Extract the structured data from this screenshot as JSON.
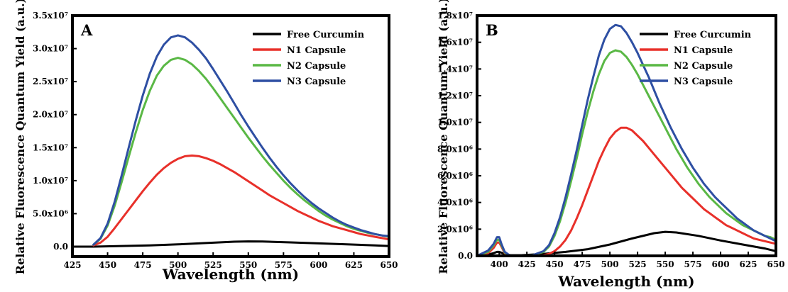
{
  "chart_data": [
    {
      "type": "line",
      "panel_label": "A",
      "xlabel": "Wavelength (nm)",
      "ylabel": "Relative Fluorescence Quantum Yield (a.u.)",
      "xlim": [
        425,
        650
      ],
      "ylim": [
        -1500000,
        35000000
      ],
      "xticks": [
        425,
        450,
        475,
        500,
        525,
        550,
        575,
        600,
        625,
        650
      ],
      "xtick_labels": [
        "425",
        "450",
        "475",
        "500",
        "525",
        "550",
        "575",
        "600",
        "625",
        "650"
      ],
      "yticks": [
        0,
        5000000,
        10000000,
        15000000,
        20000000,
        25000000,
        30000000,
        35000000
      ],
      "ytick_labels": [
        "0.0",
        "5.0x10⁶",
        "1.0x10⁷",
        "1.5x10⁷",
        "2.0x10⁷",
        "2.5x10⁷",
        "3.0x10⁷",
        "3.5x10⁷"
      ],
      "legend_position": "top-right",
      "grid": false,
      "series": [
        {
          "name": "Free Curcumin",
          "color": "#000000",
          "x": [
            425,
            440,
            460,
            480,
            500,
            520,
            540,
            550,
            560,
            580,
            600,
            620,
            640,
            650
          ],
          "y": [
            0,
            0,
            100000,
            200000,
            350000,
            550000,
            750000,
            800000,
            780000,
            650000,
            500000,
            350000,
            200000,
            100000
          ]
        },
        {
          "name": "N1 Capsule",
          "color": "#e8302a",
          "x": [
            440,
            445,
            450,
            455,
            460,
            465,
            470,
            475,
            480,
            485,
            490,
            495,
            500,
            505,
            510,
            515,
            520,
            525,
            530,
            535,
            540,
            545,
            550,
            555,
            560,
            565,
            570,
            575,
            580,
            585,
            590,
            595,
            600,
            605,
            610,
            615,
            620,
            625,
            630,
            635,
            640,
            645,
            650
          ],
          "y": [
            200000,
            600000,
            1500000,
            2800000,
            4200000,
            5600000,
            7000000,
            8400000,
            9700000,
            10900000,
            11900000,
            12700000,
            13300000,
            13700000,
            13800000,
            13700000,
            13400000,
            13000000,
            12500000,
            11900000,
            11300000,
            10600000,
            9900000,
            9200000,
            8500000,
            7800000,
            7200000,
            6600000,
            6000000,
            5400000,
            4900000,
            4400000,
            3900000,
            3500000,
            3100000,
            2800000,
            2500000,
            2200000,
            1900000,
            1700000,
            1500000,
            1300000,
            1100000
          ]
        },
        {
          "name": "N2 Capsule",
          "color": "#5ab845",
          "x": [
            440,
            445,
            450,
            455,
            460,
            465,
            470,
            475,
            480,
            485,
            490,
            495,
            500,
            505,
            510,
            515,
            520,
            525,
            530,
            535,
            540,
            545,
            550,
            555,
            560,
            565,
            570,
            575,
            580,
            585,
            590,
            595,
            600,
            605,
            610,
            615,
            620,
            625,
            630,
            635,
            640,
            645,
            650
          ],
          "y": [
            300000,
            1200000,
            3200000,
            6200000,
            9800000,
            13600000,
            17300000,
            20700000,
            23600000,
            25900000,
            27400000,
            28300000,
            28600000,
            28300000,
            27600000,
            26600000,
            25400000,
            24000000,
            22500000,
            21000000,
            19500000,
            18000000,
            16500000,
            15100000,
            13700000,
            12400000,
            11200000,
            10000000,
            8900000,
            7900000,
            7000000,
            6200000,
            5400000,
            4700000,
            4100000,
            3600000,
            3100000,
            2700000,
            2400000,
            2100000,
            1900000,
            1700000,
            1500000
          ]
        },
        {
          "name": "N3 Capsule",
          "color": "#2e4fa3",
          "x": [
            440,
            445,
            450,
            455,
            460,
            465,
            470,
            475,
            480,
            485,
            490,
            495,
            500,
            505,
            510,
            515,
            520,
            525,
            530,
            535,
            540,
            545,
            550,
            555,
            560,
            565,
            570,
            575,
            580,
            585,
            590,
            595,
            600,
            605,
            610,
            615,
            620,
            625,
            630,
            635,
            640,
            645,
            650
          ],
          "y": [
            300000,
            1300000,
            3500000,
            6800000,
            10800000,
            15000000,
            19100000,
            22900000,
            26200000,
            28800000,
            30600000,
            31700000,
            32000000,
            31700000,
            30900000,
            29800000,
            28500000,
            26900000,
            25200000,
            23500000,
            21700000,
            19900000,
            18200000,
            16600000,
            15000000,
            13500000,
            12100000,
            10800000,
            9600000,
            8500000,
            7500000,
            6600000,
            5800000,
            5100000,
            4400000,
            3800000,
            3300000,
            2900000,
            2500000,
            2200000,
            1900000,
            1700000,
            1600000
          ]
        }
      ]
    },
    {
      "type": "line",
      "panel_label": "B",
      "xlabel": "Wavelength (nm)",
      "ylabel": "Relative Fluorescence Quantum Yield (a.u.)",
      "xlim": [
        380,
        650
      ],
      "ylim": [
        0,
        18000000
      ],
      "xticks": [
        400,
        425,
        450,
        475,
        500,
        525,
        550,
        575,
        600,
        625,
        650
      ],
      "xtick_labels": [
        "400",
        "425",
        "450",
        "475",
        "500",
        "525",
        "550",
        "575",
        "600",
        "625",
        "650"
      ],
      "yticks": [
        0,
        2000000,
        4000000,
        6000000,
        8000000,
        10000000,
        12000000,
        14000000,
        16000000,
        18000000
      ],
      "ytick_labels": [
        "0.0",
        "2.0x10⁶",
        "4.0x10⁶",
        "6.0x10⁶",
        "8.0x10⁶",
        "1.0x10⁷",
        "1.2x10⁷",
        "1.4x10⁷",
        "1.6x10⁷",
        "1.8x10⁷"
      ],
      "legend_position": "top-right",
      "grid": false,
      "series": [
        {
          "name": "Free Curcumin",
          "color": "#000000",
          "x": [
            380,
            390,
            395,
            398,
            400,
            403,
            410,
            420,
            440,
            460,
            480,
            500,
            520,
            540,
            550,
            560,
            580,
            600,
            620,
            640,
            650
          ],
          "y": [
            0,
            100000,
            200000,
            300000,
            300000,
            200000,
            50000,
            50000,
            150000,
            300000,
            500000,
            850000,
            1300000,
            1700000,
            1800000,
            1750000,
            1500000,
            1150000,
            850000,
            550000,
            350000
          ]
        },
        {
          "name": "N1 Capsule",
          "color": "#e8302a",
          "x": [
            380,
            390,
            395,
            398,
            400,
            402,
            405,
            410,
            420,
            430,
            440,
            445,
            450,
            455,
            460,
            465,
            470,
            475,
            480,
            485,
            490,
            495,
            500,
            505,
            510,
            515,
            520,
            525,
            530,
            535,
            540,
            545,
            550,
            555,
            560,
            565,
            570,
            575,
            580,
            585,
            590,
            595,
            600,
            605,
            610,
            615,
            620,
            625,
            630,
            635,
            640,
            645,
            650
          ],
          "y": [
            0,
            200000,
            600000,
            1000000,
            1000000,
            700000,
            200000,
            0,
            0,
            0,
            50000,
            150000,
            350000,
            700000,
            1200000,
            1900000,
            2800000,
            3800000,
            4900000,
            6000000,
            7100000,
            8000000,
            8800000,
            9300000,
            9600000,
            9600000,
            9400000,
            9000000,
            8600000,
            8100000,
            7600000,
            7100000,
            6600000,
            6100000,
            5600000,
            5100000,
            4700000,
            4300000,
            3900000,
            3500000,
            3200000,
            2900000,
            2600000,
            2300000,
            2100000,
            1900000,
            1700000,
            1500000,
            1300000,
            1200000,
            1100000,
            1000000,
            900000
          ]
        },
        {
          "name": "N2 Capsule",
          "color": "#5ab845",
          "x": [
            380,
            390,
            395,
            398,
            400,
            402,
            405,
            410,
            420,
            430,
            440,
            445,
            450,
            455,
            460,
            465,
            470,
            475,
            480,
            485,
            490,
            495,
            500,
            505,
            510,
            515,
            520,
            525,
            530,
            535,
            540,
            545,
            550,
            555,
            560,
            565,
            570,
            575,
            580,
            585,
            590,
            595,
            600,
            605,
            610,
            615,
            620,
            625,
            630,
            635,
            640,
            645,
            650
          ],
          "y": [
            0,
            300000,
            800000,
            1200000,
            1200000,
            800000,
            250000,
            0,
            0,
            50000,
            300000,
            700000,
            1500000,
            2600000,
            4000000,
            5600000,
            7300000,
            9100000,
            10800000,
            12300000,
            13600000,
            14600000,
            15200000,
            15400000,
            15300000,
            14900000,
            14300000,
            13600000,
            12800000,
            12000000,
            11200000,
            10400000,
            9600000,
            8800000,
            8000000,
            7300000,
            6600000,
            6000000,
            5400000,
            4900000,
            4400000,
            4000000,
            3600000,
            3200000,
            2900000,
            2600000,
            2300000,
            2100000,
            1900000,
            1700000,
            1500000,
            1400000,
            1200000
          ]
        },
        {
          "name": "N3 Capsule",
          "color": "#2e4fa3",
          "x": [
            380,
            390,
            395,
            398,
            400,
            402,
            405,
            410,
            420,
            430,
            440,
            445,
            450,
            455,
            460,
            465,
            470,
            475,
            480,
            485,
            490,
            495,
            500,
            505,
            510,
            515,
            520,
            525,
            530,
            535,
            540,
            545,
            550,
            555,
            560,
            565,
            570,
            575,
            580,
            585,
            590,
            595,
            600,
            605,
            610,
            615,
            620,
            625,
            630,
            635,
            640,
            645,
            650
          ],
          "y": [
            0,
            400000,
            900000,
            1400000,
            1400000,
            900000,
            300000,
            0,
            0,
            50000,
            350000,
            800000,
            1700000,
            2900000,
            4400000,
            6100000,
            7900000,
            9800000,
            11700000,
            13400000,
            15000000,
            16200000,
            17000000,
            17300000,
            17200000,
            16700000,
            16000000,
            15200000,
            14300000,
            13400000,
            12400000,
            11400000,
            10500000,
            9600000,
            8800000,
            8000000,
            7300000,
            6600000,
            6000000,
            5400000,
            4900000,
            4400000,
            4000000,
            3600000,
            3200000,
            2800000,
            2500000,
            2200000,
            1900000,
            1700000,
            1500000,
            1300000,
            1100000
          ]
        }
      ]
    }
  ]
}
